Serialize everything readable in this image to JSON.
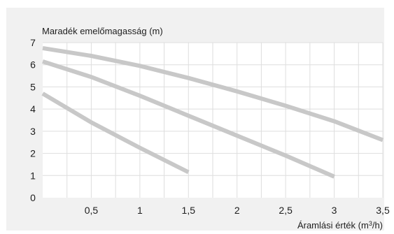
{
  "chart_data": {
    "type": "line",
    "ylabel": "Maradék emelőmagasság (m)",
    "xlabel_prefix": "Áramlási érték (m",
    "xlabel_sup": "3",
    "xlabel_suffix": "/h)",
    "xlim": [
      0,
      3.5
    ],
    "ylim": [
      0,
      7
    ],
    "x_ticks": [
      0.5,
      1,
      1.5,
      2,
      2.5,
      3,
      3.5
    ],
    "x_tick_labels": [
      "0,5",
      "1",
      "1,5",
      "2",
      "2,5",
      "3",
      "3,5"
    ],
    "x_minor_step": 0.25,
    "y_ticks": [
      0,
      1,
      2,
      3,
      4,
      5,
      6,
      7
    ],
    "y_tick_labels": [
      "0",
      "1",
      "2",
      "3",
      "4",
      "5",
      "6",
      "7"
    ],
    "grid": true,
    "line_color": "#c8c8c8",
    "series": [
      {
        "points": [
          [
            0,
            6.75
          ],
          [
            0.5,
            6.4
          ],
          [
            1,
            5.95
          ],
          [
            1.5,
            5.4
          ],
          [
            2,
            4.8
          ],
          [
            2.5,
            4.15
          ],
          [
            3,
            3.45
          ],
          [
            3.5,
            2.6
          ]
        ]
      },
      {
        "points": [
          [
            0,
            6.15
          ],
          [
            0.5,
            5.45
          ],
          [
            1,
            4.6
          ],
          [
            1.5,
            3.7
          ],
          [
            2,
            2.8
          ],
          [
            2.5,
            1.9
          ],
          [
            3,
            0.95
          ]
        ]
      },
      {
        "points": [
          [
            0,
            4.7
          ],
          [
            0.5,
            3.4
          ],
          [
            1,
            2.25
          ],
          [
            1.5,
            1.15
          ]
        ]
      }
    ]
  }
}
